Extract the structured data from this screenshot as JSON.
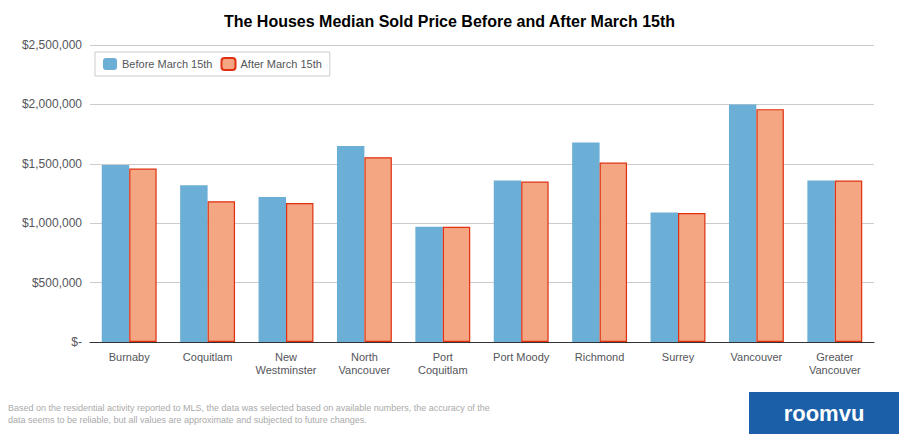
{
  "chart_data": {
    "type": "bar",
    "title": "The Houses Median Sold Price Before and After March 15th",
    "categories": [
      "Burnaby",
      "Coquitlam",
      "New\nWestminster",
      "North\nVancouver",
      "Port\nCoquitlam",
      "Port Moody",
      "Richmond",
      "Surrey",
      "Vancouver",
      "Greater\nVancouver"
    ],
    "series": [
      {
        "name": "Before March 15th",
        "color": "#6baed6",
        "values": [
          1490000,
          1320000,
          1220000,
          1650000,
          970000,
          1360000,
          1680000,
          1090000,
          2000000,
          1360000
        ]
      },
      {
        "name": "After March 15th",
        "color": "#f4a582",
        "edge_color": "#e03010",
        "values": [
          1460000,
          1185000,
          1170000,
          1555000,
          970000,
          1350000,
          1510000,
          1085000,
          1960000,
          1360000
        ]
      }
    ],
    "ylim": [
      0,
      2500000
    ],
    "yticks": [
      {
        "value": 0,
        "label": "$-"
      },
      {
        "value": 500000,
        "label": "$500,000"
      },
      {
        "value": 1000000,
        "label": "$1,000,000"
      },
      {
        "value": 1500000,
        "label": "$1,500,000"
      },
      {
        "value": 2000000,
        "label": "$2,000,000"
      },
      {
        "value": 2500000,
        "label": "$2,500,000"
      }
    ],
    "grid": true,
    "legend": "upper left",
    "background_color": "#ffffff",
    "grid_color": "#cccccc",
    "annotations": [
      {
        "text": "Based on the residential activity reported to MLS, the data was selected based on available numbers, the accuracy of the\ndata seems to be reliable, but all values are approximate and subjected to future changes.",
        "color": "#aaaaaa"
      },
      {
        "text": "roomvu",
        "color": "#ffffff",
        "background_color": "#1a5fa8"
      }
    ]
  }
}
